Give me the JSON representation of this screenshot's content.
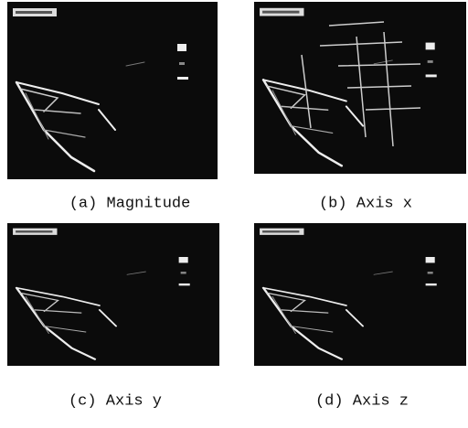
{
  "figure": {
    "panels": [
      {
        "caption": "(a) Magnitude"
      },
      {
        "caption": "(b) Axis x"
      },
      {
        "caption": "(c) Axis y"
      },
      {
        "caption": "(d) Axis z"
      }
    ]
  }
}
